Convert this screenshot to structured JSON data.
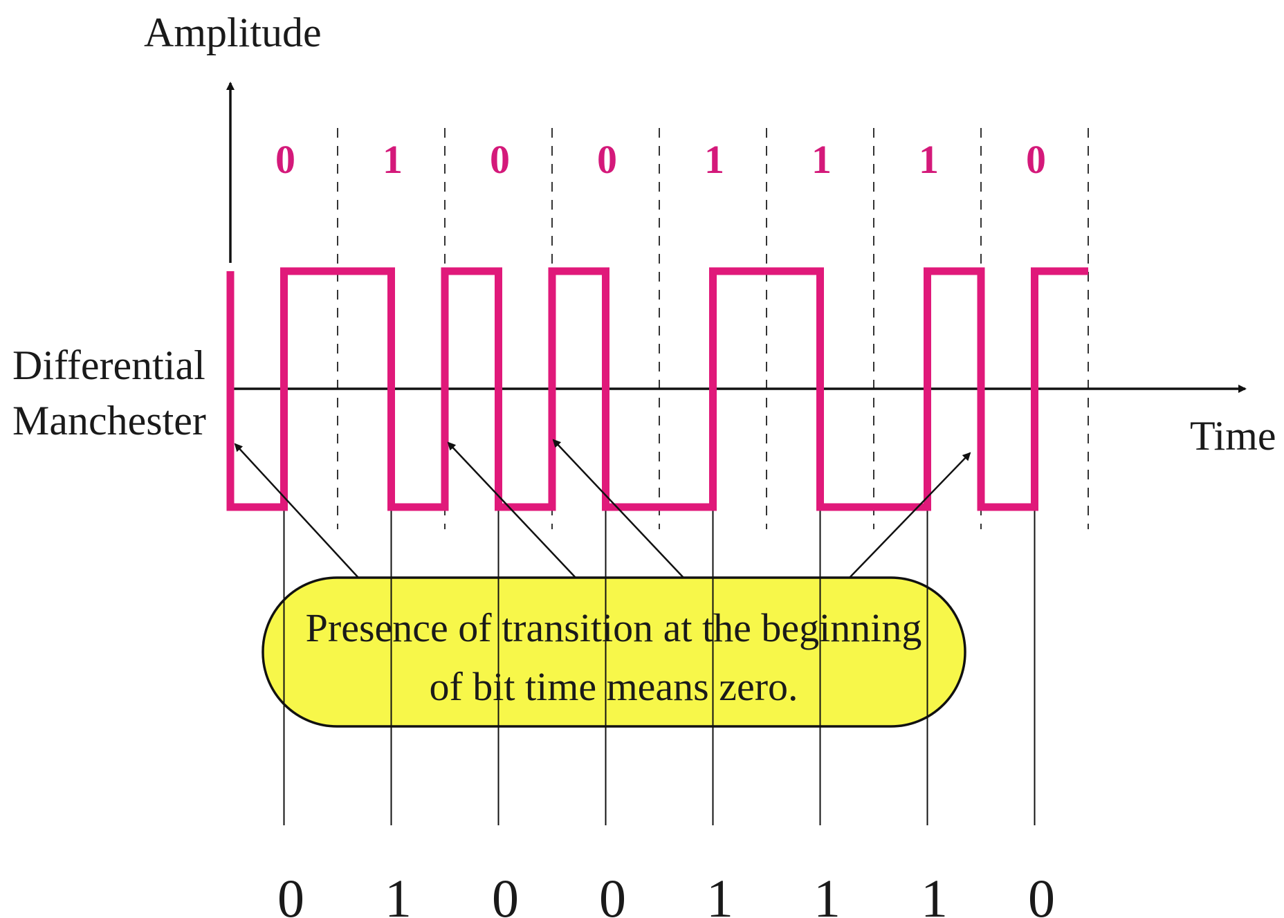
{
  "axes": {
    "y_label": "Amplitude",
    "x_label": "Time"
  },
  "signal_label": {
    "line1": "Differential",
    "line2": "Manchester"
  },
  "bits": [
    "0",
    "1",
    "0",
    "0",
    "1",
    "1",
    "1",
    "0"
  ],
  "callout": {
    "line1": "Presence of transition at the beginning",
    "line2": "of bit time means zero."
  },
  "colors": {
    "signal": "#E0197A",
    "bit_label": "#D4197A",
    "callout_fill": "#F7F74A",
    "axis": "#111111"
  }
}
